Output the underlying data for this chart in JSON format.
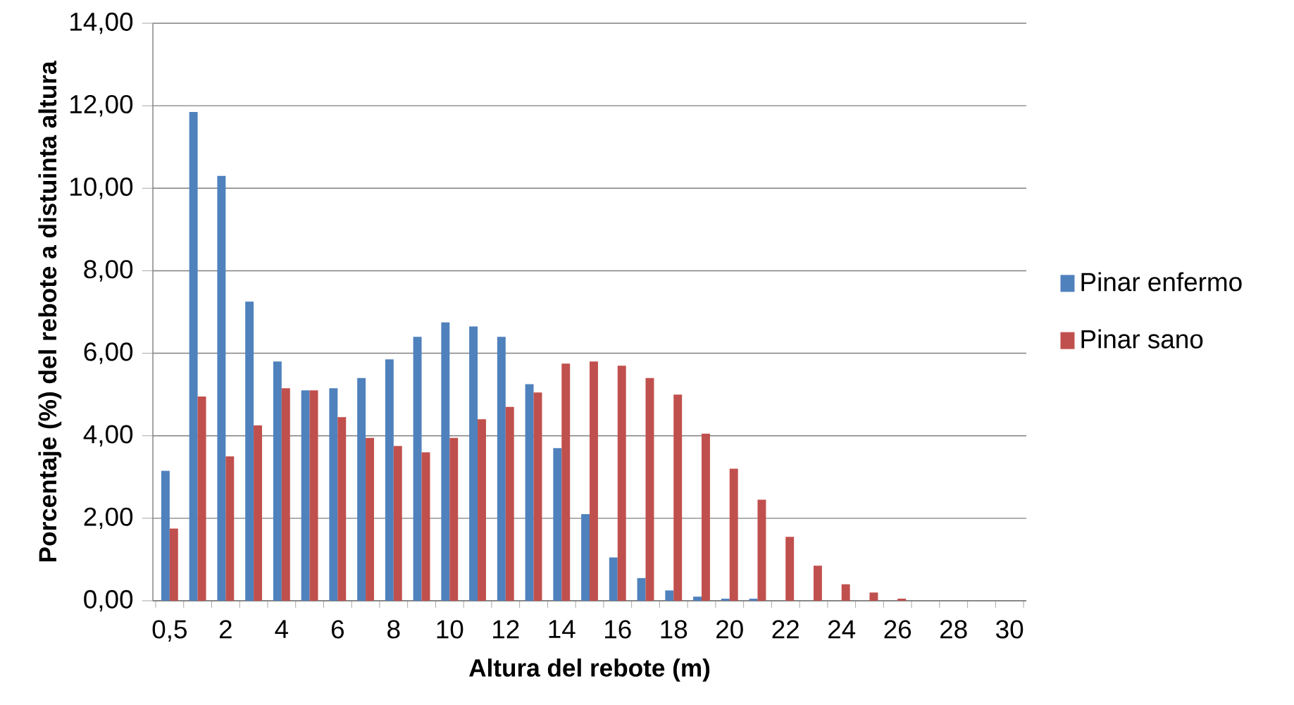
{
  "chart_data": {
    "type": "bar",
    "xlabel": "Altura del rebote (m)",
    "ylabel": "Porcentaje (%) del rebote a distuinta altura",
    "categories": [
      "0,5",
      null,
      "2",
      null,
      "4",
      null,
      "6",
      null,
      "8",
      null,
      "10",
      null,
      "12",
      null,
      "14",
      null,
      "16",
      null,
      "18",
      null,
      "20",
      null,
      "22",
      null,
      "24",
      null,
      "26",
      null,
      "28",
      null,
      "30"
    ],
    "series": [
      {
        "name": "Pinar enfermo",
        "color": "#4f81bd",
        "values": [
          3.15,
          11.85,
          10.3,
          7.25,
          5.8,
          5.1,
          5.15,
          5.4,
          5.85,
          6.4,
          6.75,
          6.65,
          6.4,
          5.25,
          3.7,
          2.1,
          1.05,
          0.55,
          0.25,
          0.1,
          0.05,
          0.05,
          0,
          0,
          0,
          0,
          0,
          0,
          0,
          0,
          0
        ]
      },
      {
        "name": "Pinar sano",
        "color": "#c0504d",
        "values": [
          1.75,
          4.95,
          3.5,
          4.25,
          5.15,
          5.1,
          4.45,
          3.95,
          3.75,
          3.6,
          3.95,
          4.4,
          4.7,
          5.05,
          5.75,
          5.8,
          5.7,
          5.4,
          5.0,
          4.05,
          3.2,
          2.45,
          1.55,
          0.85,
          0.4,
          0.2,
          0.05,
          0,
          0,
          0,
          0
        ]
      }
    ],
    "ylim": [
      0,
      14
    ],
    "yticks": [
      {
        "value": 0,
        "label": "0,00"
      },
      {
        "value": 2,
        "label": "2,00"
      },
      {
        "value": 4,
        "label": "4,00"
      },
      {
        "value": 6,
        "label": "6,00"
      },
      {
        "value": 8,
        "label": "8,00"
      },
      {
        "value": 10,
        "label": "10,00"
      },
      {
        "value": 12,
        "label": "12,00"
      },
      {
        "value": 14,
        "label": "14,00"
      }
    ],
    "grid": "y",
    "legend": "right"
  }
}
